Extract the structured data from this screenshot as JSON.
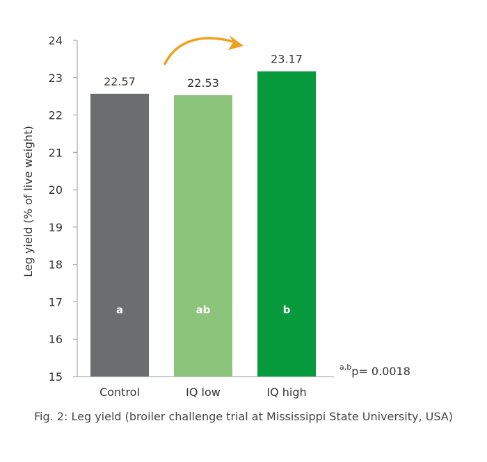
{
  "chart_data": {
    "type": "bar",
    "ylabel": "Leg yield (% of live weight)",
    "ylim": [
      15,
      24
    ],
    "yticks": [
      15,
      16,
      17,
      18,
      19,
      20,
      21,
      22,
      23,
      24
    ],
    "categories": [
      "Control",
      "IQ low",
      "IQ high"
    ],
    "values": [
      22.57,
      22.53,
      23.17
    ],
    "value_labels": [
      "22.57",
      "22.53",
      "23.17"
    ],
    "significance_letters": [
      "a",
      "ab",
      "b"
    ],
    "colors": [
      "#6b6e70",
      "#8dc47c",
      "#069a3c"
    ],
    "arrow_color": "#f0a020",
    "p_note": {
      "superscript": "a,b",
      "text": "p= 0.0018"
    }
  },
  "caption": "Fig. 2: Leg yield (broiler challenge trial at Mississippi State University, USA)"
}
